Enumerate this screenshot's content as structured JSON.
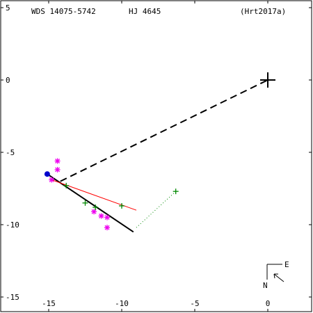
{
  "header": {
    "wds": "WDS 14075-5742",
    "name": "HJ 4645",
    "ref": "(Hrt2017a)"
  },
  "compass": {
    "east": "E",
    "north": "N"
  },
  "chart_data": {
    "type": "scatter",
    "title": "",
    "xlabel": "",
    "ylabel": "",
    "xlim": [
      -17,
      3
    ],
    "ylim": [
      -16,
      5
    ],
    "x_ticks": [
      -15,
      -10,
      -5,
      0
    ],
    "y_ticks": [
      5,
      0,
      -5,
      -10,
      -15
    ],
    "primary_star": {
      "x": 0,
      "y": 0
    },
    "secondary_position": {
      "x": -15.1,
      "y": -6.5,
      "color": "#0000cc"
    },
    "orbit_black_line": {
      "x": [
        -15.1,
        -9.2
      ],
      "y": [
        -6.5,
        -10.5
      ]
    },
    "fit_red_line": {
      "x": [
        -14.8,
        -9.0
      ],
      "y": [
        -6.9,
        -9.0
      ]
    },
    "dashed_connector": {
      "x": [
        -14.2,
        0
      ],
      "y": [
        -7.0,
        0
      ]
    },
    "dotted_residuals": [
      {
        "x": [
          -9.0,
          -6.3
        ],
        "y": [
          -10.2,
          -7.7
        ]
      }
    ],
    "series": [
      {
        "marker": "asterisk",
        "color": "#ee00ee",
        "points": [
          {
            "x": -14.4,
            "y": -5.6
          },
          {
            "x": -14.4,
            "y": -6.2
          },
          {
            "x": -14.8,
            "y": -6.9
          },
          {
            "x": -11.9,
            "y": -9.1
          },
          {
            "x": -11.4,
            "y": -9.4
          },
          {
            "x": -11.0,
            "y": -9.5
          },
          {
            "x": -11.0,
            "y": -10.2
          }
        ]
      },
      {
        "marker": "plus",
        "color": "#008800",
        "points": [
          {
            "x": -12.5,
            "y": -8.5
          },
          {
            "x": -11.8,
            "y": -8.8
          },
          {
            "x": -10.0,
            "y": -8.7
          },
          {
            "x": -6.3,
            "y": -7.7
          },
          {
            "x": -13.8,
            "y": -7.3
          }
        ]
      }
    ]
  }
}
